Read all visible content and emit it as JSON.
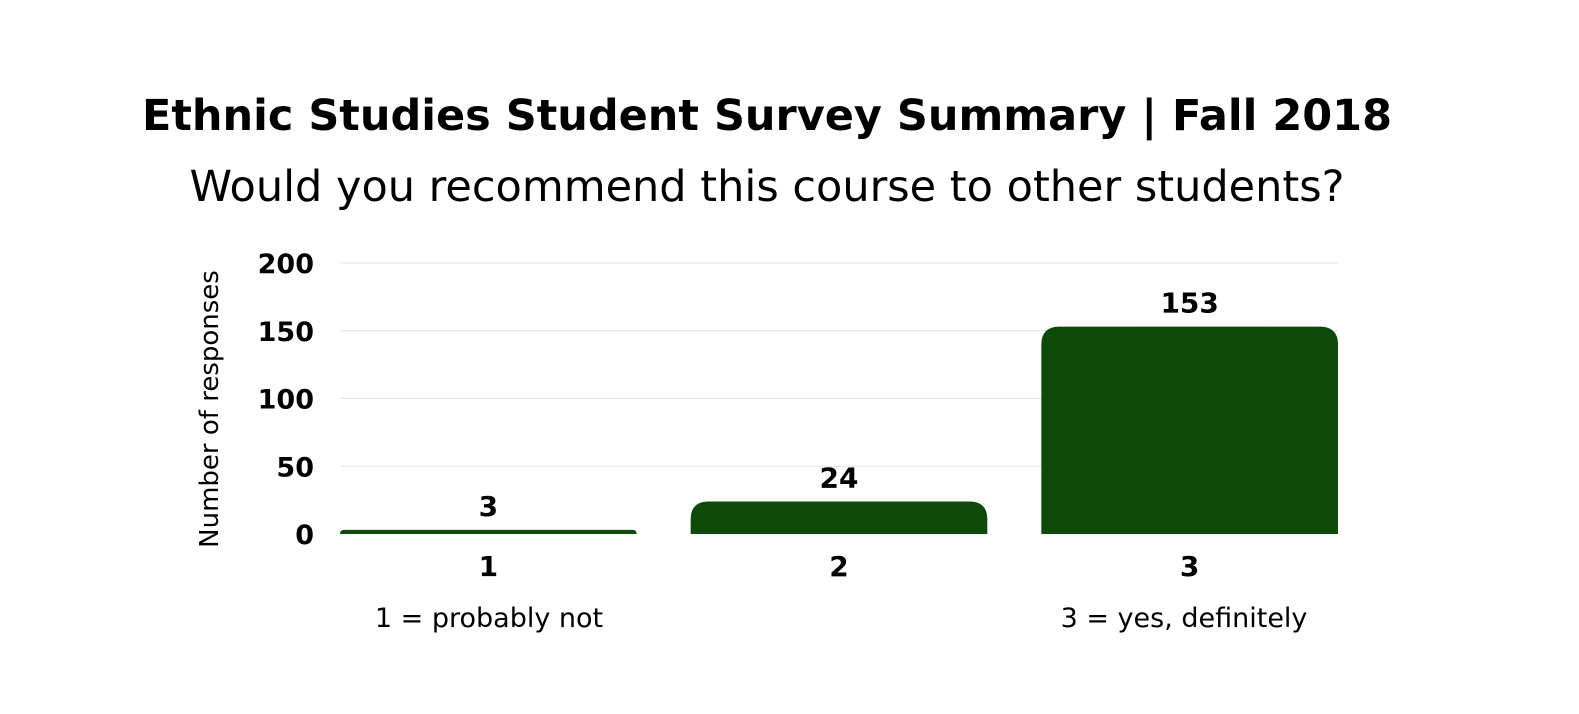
{
  "chart_data": {
    "type": "bar",
    "title": "Ethnic Studies Student Survey Summary | Fall 2018",
    "subtitle": "Would you recommend this course to other students?",
    "categories": [
      "1",
      "2",
      "3"
    ],
    "values": [
      3,
      24,
      153
    ],
    "xlabel": "",
    "ylabel": "Number of responses",
    "ylim": [
      0,
      200
    ],
    "yticks": [
      "0",
      "50",
      "100",
      "150",
      "200"
    ],
    "grid": true,
    "legend": "none",
    "annotations": {
      "left": "1 = probably not",
      "right": "3 = yes, definitely"
    },
    "colors": {
      "bar": "#0e4a09",
      "grid": "#e3e3e3"
    }
  }
}
